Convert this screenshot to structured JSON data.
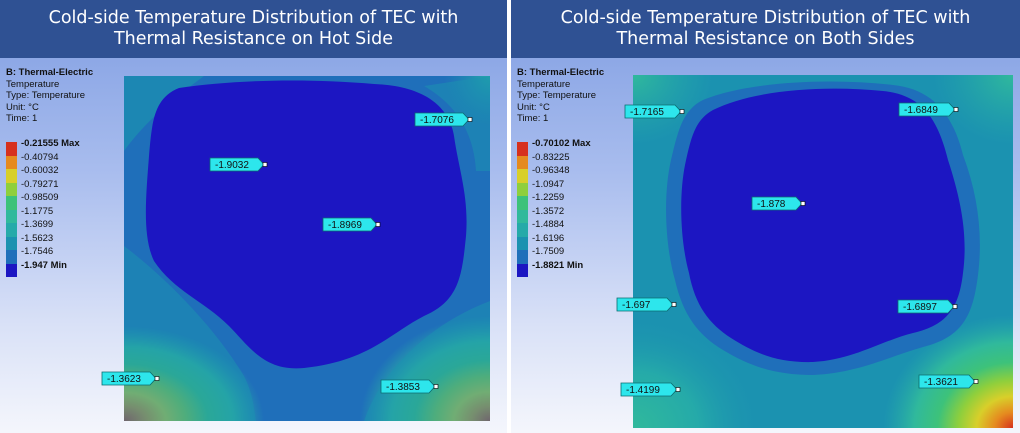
{
  "colors": {
    "header_bg": "#2f5193",
    "contour": [
      "#1c16c2",
      "#1f6fba",
      "#1b92b0",
      "#25aaa9",
      "#30b99c",
      "#3dc27a",
      "#8fcf3c",
      "#d8cf2a",
      "#e58a1f",
      "#d6301e"
    ],
    "probe_fill": "#2de6ec"
  },
  "panels": [
    {
      "title": "Cold-side Temperature Distribution of TEC with\nThermal Resistance on Hot Side",
      "info": {
        "name": "B: Thermal-Electric",
        "type_line": "Temperature",
        "type_detail": "Type: Temperature",
        "unit": "Unit: °C",
        "time": "Time: 1"
      },
      "legend": {
        "labels": [
          "-0.21555 Max",
          "-0.40794",
          "-0.60032",
          "-0.79271",
          "-0.98509",
          "-1.1775",
          "-1.3699",
          "-1.5623",
          "-1.7546",
          "-1.947 Min"
        ],
        "colors": [
          "#d6301e",
          "#e58a1f",
          "#d8cf2a",
          "#8fcf3c",
          "#3dc27a",
          "#30b99c",
          "#25aaa9",
          "#1b92b0",
          "#1f6fba",
          "#1c16c2"
        ]
      },
      "probes": [
        {
          "label": "-1.7076"
        },
        {
          "label": "-1.9032"
        },
        {
          "label": "-1.8969"
        },
        {
          "label": "-1.3623"
        },
        {
          "label": "-1.3853"
        }
      ]
    },
    {
      "title": "Cold-side Temperature Distribution of TEC with\nThermal Resistance on Both Sides",
      "info": {
        "name": "B: Thermal-Electric",
        "type_line": "Temperature",
        "type_detail": "Type: Temperature",
        "unit": "Unit: °C",
        "time": "Time: 1"
      },
      "legend": {
        "labels": [
          "-0.70102 Max",
          "-0.83225",
          "-0.96348",
          "-1.0947",
          "-1.2259",
          "-1.3572",
          "-1.4884",
          "-1.6196",
          "-1.7509",
          "-1.8821 Min"
        ],
        "colors": [
          "#d6301e",
          "#e58a1f",
          "#d8cf2a",
          "#8fcf3c",
          "#3dc27a",
          "#30b99c",
          "#25aaa9",
          "#1b92b0",
          "#1f6fba",
          "#1c16c2"
        ]
      },
      "probes": [
        {
          "label": "-1.7165"
        },
        {
          "label": "-1.6849"
        },
        {
          "label": "-1.878"
        },
        {
          "label": "-1.697"
        },
        {
          "label": "-1.6897"
        },
        {
          "label": "-1.4199"
        },
        {
          "label": "-1.3621"
        }
      ]
    }
  ]
}
